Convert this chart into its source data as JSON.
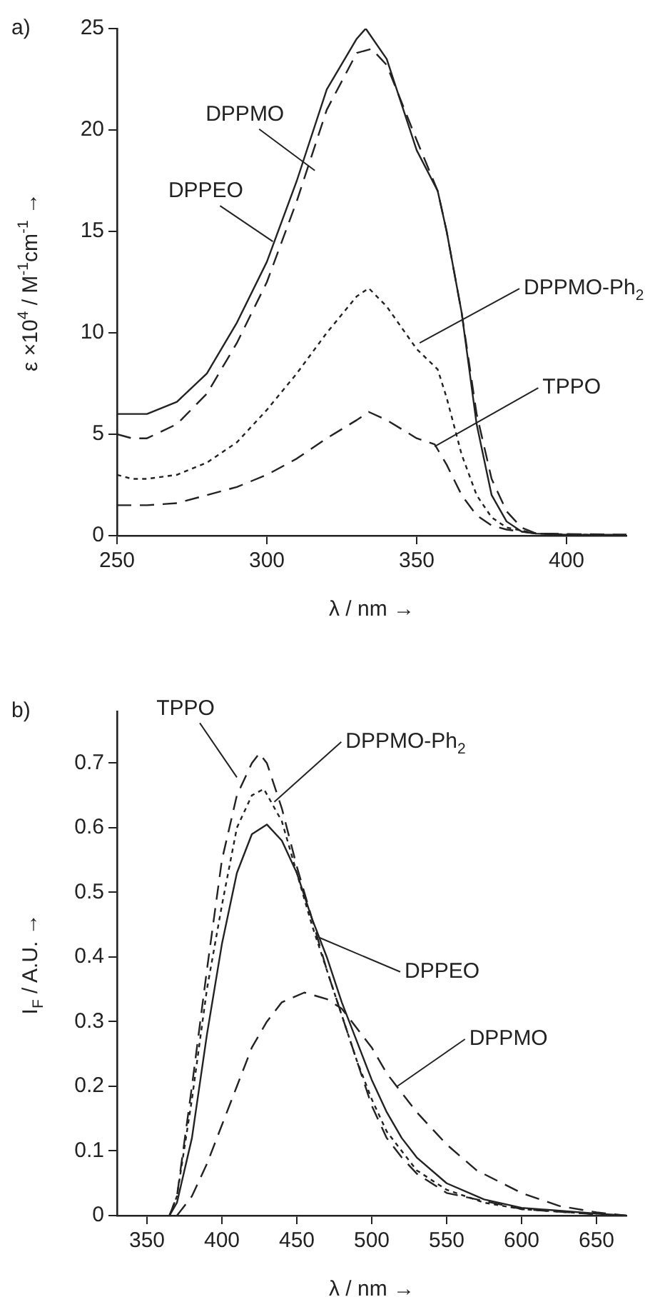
{
  "chart_data": [
    {
      "type": "line",
      "title": "a)",
      "xlabel": "λ / nm →",
      "ylabel": "ε ×10$^{4}$ / M$^{-1}$cm$^{-1}$ →",
      "xlim": [
        250,
        420
      ],
      "xticks": [
        250,
        300,
        350,
        400
      ],
      "ylim": [
        0,
        25
      ],
      "yticks": [
        0,
        5,
        10,
        15,
        20,
        25
      ],
      "grid": false,
      "legend": false,
      "marker": "none",
      "series": [
        {
          "color": "#222222",
          "line_style": "solid",
          "x": [
            250,
            260,
            270,
            280,
            290,
            300,
            310,
            320,
            330,
            333,
            340,
            350,
            357,
            360,
            365,
            370,
            375,
            380,
            385,
            390,
            400,
            420
          ],
          "values": [
            6.0,
            6.0,
            6.6,
            8.0,
            10.5,
            13.5,
            17.5,
            22,
            24.5,
            25,
            23.5,
            19,
            17,
            15,
            11,
            5.5,
            2,
            0.7,
            0.2,
            0.1,
            0.05,
            0.05
          ]
        },
        {
          "color": "#222222",
          "line_style": "dashed",
          "x": [
            250,
            255,
            260,
            270,
            280,
            290,
            300,
            310,
            320,
            330,
            335,
            340,
            350,
            357,
            360,
            365,
            370,
            375,
            380,
            385,
            390,
            420
          ],
          "values": [
            5.0,
            4.8,
            4.8,
            5.5,
            7,
            9.5,
            12.5,
            16.5,
            21,
            23.8,
            24,
            23.2,
            19.5,
            17,
            15,
            11,
            6,
            2.8,
            1.2,
            0.4,
            0.1,
            0.05
          ]
        },
        {
          "color": "#222222",
          "line_style": "dotted",
          "x": [
            250,
            255,
            260,
            270,
            280,
            290,
            300,
            310,
            320,
            330,
            334,
            340,
            350,
            357,
            360,
            365,
            370,
            375,
            380,
            390,
            420
          ],
          "values": [
            3.0,
            2.8,
            2.8,
            3.0,
            3.6,
            4.6,
            6.2,
            8,
            10,
            11.8,
            12.2,
            11.3,
            9.2,
            8.2,
            6.8,
            4,
            2,
            0.9,
            0.4,
            0.1,
            0
          ]
        },
        {
          "color": "#222222",
          "line_style": "dashed",
          "x": [
            250,
            260,
            270,
            280,
            290,
            300,
            310,
            320,
            330,
            334,
            340,
            350,
            356,
            360,
            365,
            370,
            375,
            380,
            390,
            420
          ],
          "values": [
            1.5,
            1.5,
            1.6,
            2,
            2.4,
            3.0,
            3.8,
            4.8,
            5.7,
            6.1,
            5.7,
            4.8,
            4.5,
            3.5,
            2,
            1,
            0.5,
            0.3,
            0.1,
            0
          ]
        }
      ],
      "annotations": [
        {
          "text": "DPPMO",
          "x": 316,
          "y": 18
        },
        {
          "text": "DPPEO",
          "x": 302,
          "y": 14.5
        },
        {
          "text": "DPPMO-Ph$_{2}$",
          "x": 351,
          "y": 9.5
        },
        {
          "text": "TPPO",
          "x": 356,
          "y": 4.4
        }
      ]
    },
    {
      "type": "line",
      "title": "b)",
      "xlabel": "λ / nm →",
      "ylabel": "I$_{F}$ / A.U. →",
      "xlim": [
        330,
        670
      ],
      "xticks": [
        350,
        400,
        450,
        500,
        550,
        600,
        650
      ],
      "ylim": [
        0,
        0.78
      ],
      "yticks": [
        0,
        0.1,
        0.2,
        0.3,
        0.4,
        0.5,
        0.6,
        0.7
      ],
      "grid": false,
      "legend": false,
      "marker": "none",
      "series": [
        {
          "color": "#222222",
          "line_style": "solid",
          "x": [
            365,
            370,
            380,
            390,
            400,
            410,
            420,
            430,
            440,
            450,
            460,
            470,
            480,
            490,
            500,
            510,
            520,
            530,
            550,
            575,
            600,
            650,
            670
          ],
          "values": [
            0,
            0.02,
            0.12,
            0.28,
            0.42,
            0.53,
            0.59,
            0.605,
            0.58,
            0.53,
            0.46,
            0.4,
            0.33,
            0.27,
            0.21,
            0.16,
            0.12,
            0.09,
            0.05,
            0.025,
            0.012,
            0.003,
            0
          ]
        },
        {
          "color": "#222222",
          "line_style": "dotted",
          "x": [
            365,
            370,
            380,
            390,
            400,
            410,
            420,
            428,
            440,
            450,
            460,
            470,
            480,
            490,
            500,
            510,
            520,
            530,
            550,
            575,
            600,
            650
          ],
          "values": [
            0,
            0.03,
            0.18,
            0.35,
            0.48,
            0.6,
            0.65,
            0.66,
            0.61,
            0.53,
            0.45,
            0.38,
            0.31,
            0.24,
            0.18,
            0.13,
            0.1,
            0.07,
            0.04,
            0.02,
            0.01,
            0.002
          ]
        },
        {
          "color": "#222222",
          "line_style": "dashed",
          "x": [
            365,
            370,
            380,
            390,
            400,
            410,
            420,
            425,
            430,
            440,
            450,
            460,
            470,
            480,
            490,
            500,
            510,
            520,
            530,
            550,
            600,
            650
          ],
          "values": [
            0,
            0.03,
            0.2,
            0.38,
            0.55,
            0.65,
            0.7,
            0.715,
            0.7,
            0.63,
            0.54,
            0.46,
            0.38,
            0.31,
            0.24,
            0.17,
            0.12,
            0.09,
            0.065,
            0.035,
            0.01,
            0.002
          ]
        },
        {
          "color": "#222222",
          "line_style": "dashed",
          "x": [
            370,
            380,
            390,
            400,
            410,
            420,
            430,
            440,
            455,
            470,
            480,
            490,
            500,
            510,
            520,
            530,
            550,
            570,
            600,
            625,
            650,
            670
          ],
          "values": [
            0,
            0.03,
            0.08,
            0.14,
            0.2,
            0.26,
            0.3,
            0.33,
            0.345,
            0.335,
            0.32,
            0.29,
            0.26,
            0.22,
            0.19,
            0.16,
            0.11,
            0.07,
            0.035,
            0.015,
            0.005,
            0
          ]
        }
      ],
      "annotations": [
        {
          "text": "TPPO",
          "x": 410,
          "y": 0.678
        },
        {
          "text": "DPPMO-Ph$_{2}$",
          "x": 435,
          "y": 0.64
        },
        {
          "text": "DPPEO",
          "x": 465,
          "y": 0.43
        },
        {
          "text": "DPPMO",
          "x": 517,
          "y": 0.2
        }
      ]
    }
  ]
}
